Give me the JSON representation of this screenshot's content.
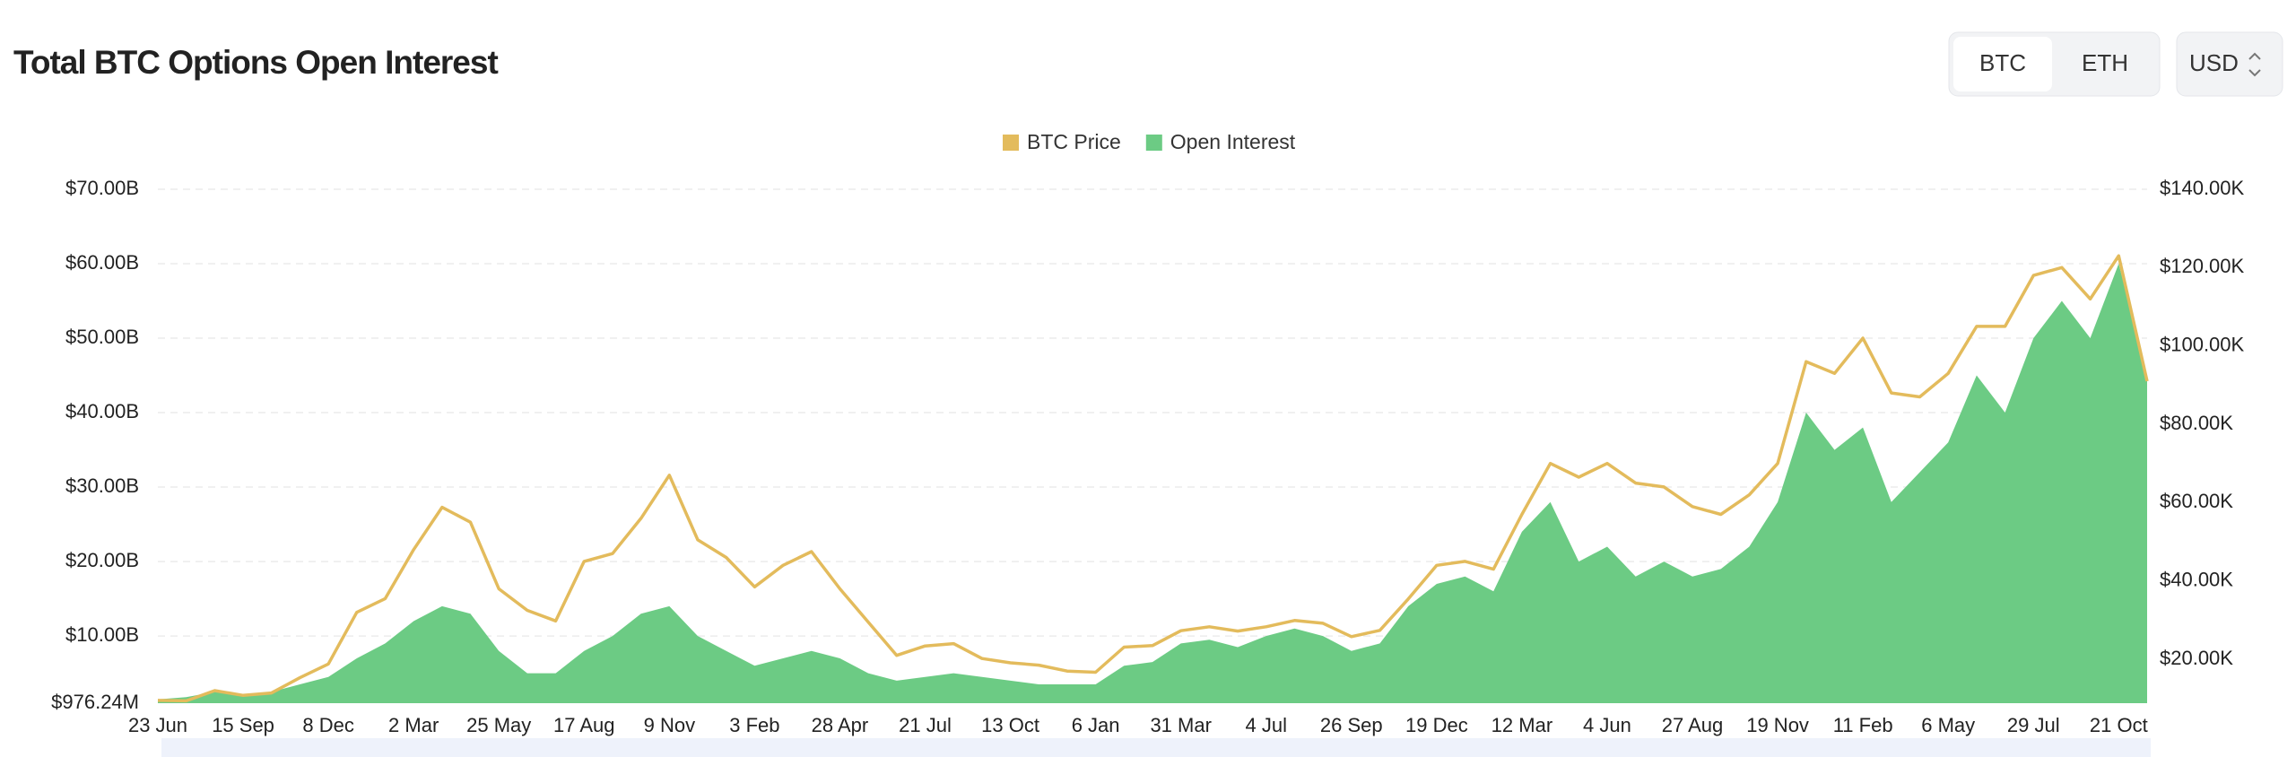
{
  "chart_data": {
    "type": "combo",
    "title": "Total BTC Options Open Interest",
    "categories": [
      "23 Jun",
      null,
      null,
      "15 Sep",
      null,
      null,
      "8 Dec",
      null,
      null,
      "2 Mar",
      null,
      null,
      "25 May",
      null,
      null,
      "17 Aug",
      null,
      null,
      "9 Nov",
      null,
      null,
      "3 Feb",
      null,
      null,
      "28 Apr",
      null,
      null,
      "21 Jul",
      null,
      null,
      "13 Oct",
      null,
      null,
      "6 Jan",
      null,
      null,
      "31 Mar",
      null,
      null,
      "4 Jul",
      null,
      null,
      "26 Sep",
      null,
      null,
      "19 Dec",
      null,
      null,
      "12 Mar",
      null,
      null,
      "4 Jun",
      null,
      null,
      "27 Aug",
      null,
      null,
      "19 Nov",
      null,
      null,
      "11 Feb",
      null,
      null,
      "6 May",
      null,
      null,
      "29 Jul",
      null,
      null,
      "21 Oct",
      null
    ],
    "series": [
      {
        "name": "BTC Price",
        "type": "line",
        "axis": "y2",
        "color": "#e3bb5c",
        "values": [
          9.5,
          9.4,
          12.0,
          10.8,
          11.4,
          15.3,
          18.8,
          32,
          35.5,
          48,
          58.8,
          55,
          38,
          32.5,
          29.8,
          45,
          47,
          56,
          67,
          50.5,
          46,
          38.5,
          44,
          47.5,
          38,
          29.5,
          21,
          23.4,
          24,
          20.2,
          19.1,
          18.5,
          17,
          16.7,
          23.1,
          23.5,
          27.3,
          28.3,
          27.2,
          28.3,
          29.9,
          29.2,
          25.8,
          27.4,
          35.4,
          44,
          45,
          43,
          57,
          70,
          66.5,
          70,
          65,
          64,
          59,
          57,
          62,
          70,
          96,
          93,
          102,
          88,
          87,
          93,
          105,
          105,
          118,
          120,
          112,
          123,
          91
        ]
      },
      {
        "name": "Open Interest",
        "type": "area",
        "axis": "y",
        "color": "#6ccb84",
        "values": [
          1.5,
          1.8,
          2.5,
          2.0,
          2.5,
          3.5,
          4.5,
          7,
          9,
          12,
          14,
          13,
          8,
          5,
          5,
          8,
          10,
          13,
          14,
          10,
          8,
          6,
          7,
          8,
          7,
          5,
          4,
          4.5,
          5,
          4.5,
          4,
          3.5,
          3.5,
          3.5,
          6,
          6.5,
          9,
          9.5,
          8.5,
          10,
          11,
          10,
          8,
          9,
          14,
          17,
          18,
          16,
          24,
          28,
          20,
          22,
          18,
          20,
          18,
          19,
          22,
          28,
          40,
          35,
          38,
          28,
          32,
          36,
          45,
          40,
          50,
          55,
          50,
          60,
          45
        ]
      }
    ],
    "ylim": [
      0.97624,
      70
    ],
    "yticks": [
      {
        "value": 0.97624,
        "label": "$976.24M"
      },
      {
        "value": 10,
        "label": "$10.00B"
      },
      {
        "value": 20,
        "label": "$20.00B"
      },
      {
        "value": 30,
        "label": "$30.00B"
      },
      {
        "value": 40,
        "label": "$40.00B"
      },
      {
        "value": 50,
        "label": "$50.00B"
      },
      {
        "value": 60,
        "label": "$60.00B"
      },
      {
        "value": 70,
        "label": "$70.00B"
      }
    ],
    "y2lim": [
      8.8,
      140
    ],
    "y2ticks": [
      {
        "value": 20,
        "label": "$20.00K"
      },
      {
        "value": 40,
        "label": "$40.00K"
      },
      {
        "value": 60,
        "label": "$60.00K"
      },
      {
        "value": 80,
        "label": "$80.00K"
      },
      {
        "value": 100,
        "label": "$100.00K"
      },
      {
        "value": 120,
        "label": "$120.00K"
      },
      {
        "value": 140,
        "label": "$140.00K"
      }
    ],
    "grid": true
  },
  "controls": {
    "assets": [
      "BTC",
      "ETH"
    ],
    "currency": "USD"
  }
}
